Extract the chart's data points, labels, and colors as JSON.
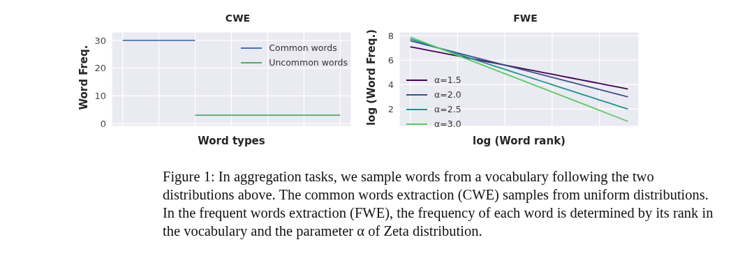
{
  "chart_data": [
    {
      "type": "line",
      "title": "CWE",
      "xlabel": "Word types",
      "ylabel": "Word Freq.",
      "categories": [
        null,
        null,
        null,
        null,
        null,
        null,
        null
      ],
      "ylim": [
        -1,
        33
      ],
      "yticks": [
        0,
        10,
        20,
        30
      ],
      "grid": true,
      "legend": "top right",
      "series": [
        {
          "name": "Common words",
          "color": "#4c72b0",
          "values": [
            30,
            30,
            30,
            null,
            null,
            null,
            null
          ]
        },
        {
          "name": "Uncommon words",
          "color": "#55a868",
          "values": [
            null,
            null,
            3,
            3,
            3,
            3,
            3
          ]
        }
      ]
    },
    {
      "type": "line",
      "title": "FWE",
      "xlabel": "log (Word rank)",
      "ylabel": "log (Word Freq.)",
      "categories": [
        null,
        null,
        null,
        null,
        null,
        null,
        null,
        null,
        null,
        null,
        null,
        null,
        null,
        null,
        null,
        null,
        null,
        null,
        null,
        null,
        null,
        null,
        null,
        null
      ],
      "ylim": [
        0.6,
        8.3
      ],
      "yticks": [
        2,
        4,
        6,
        8
      ],
      "grid": true,
      "legend": "left",
      "series": [
        {
          "name": "α=1.5",
          "color": "#440154",
          "values": [
            7.1,
            6.95,
            6.8,
            6.65,
            6.5,
            6.35,
            6.2,
            6.05,
            5.9,
            5.75,
            5.6,
            5.45,
            5.3,
            5.15,
            5.0,
            4.85,
            4.7,
            4.55,
            4.4,
            4.25,
            4.1,
            3.95,
            3.8,
            3.65
          ]
        },
        {
          "name": "α=2.0",
          "color": "#3b528b",
          "values": [
            7.6,
            7.4,
            7.2,
            7.0,
            6.8,
            6.6,
            6.4,
            6.2,
            6.0,
            5.8,
            5.6,
            5.4,
            5.2,
            5.0,
            4.8,
            4.6,
            4.4,
            4.2,
            4.0,
            3.8,
            3.6,
            3.4,
            3.2,
            3.0
          ]
        },
        {
          "name": "α=2.5",
          "color": "#21918c",
          "values": [
            7.75,
            7.5,
            7.25,
            7.0,
            6.75,
            6.5,
            6.25,
            6.0,
            5.75,
            5.5,
            5.25,
            5.0,
            4.75,
            4.5,
            4.25,
            4.0,
            3.75,
            3.5,
            3.25,
            3.0,
            2.75,
            2.5,
            2.25,
            2.0
          ]
        },
        {
          "name": "α=3.0",
          "color": "#5ec962",
          "values": [
            7.9,
            7.6,
            7.3,
            7.0,
            6.7,
            6.4,
            6.1,
            5.8,
            5.5,
            5.2,
            4.9,
            4.6,
            4.3,
            4.0,
            3.7,
            3.4,
            3.1,
            2.8,
            2.5,
            2.2,
            1.9,
            1.6,
            1.3,
            1.0
          ]
        }
      ],
      "annotations": [
        "Figure 1: In aggregation tasks, we sample words from a vocabulary following the two distributions above. The common words extraction (CWE) samples from uniform distributions. In the frequent words extraction (FWE), the frequency of each word is determined by its rank in the vocabulary and the parameter α of Zeta distribution."
      ]
    }
  ]
}
